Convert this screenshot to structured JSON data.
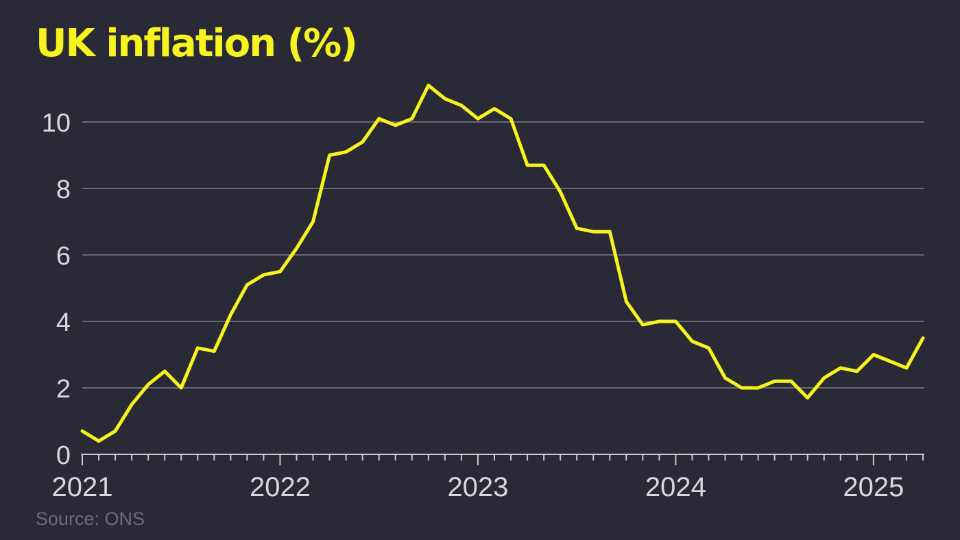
{
  "header": {
    "title": "UK inflation (%)"
  },
  "footer": {
    "source": "Source: ONS"
  },
  "colors": {
    "background": "#292a35",
    "line": "#f7f31f",
    "text": "#d8d9de",
    "grid": "#8a8b94",
    "source": "#6c6d78"
  },
  "chart_data": {
    "type": "line",
    "title": "UK inflation (%)",
    "xlabel": "",
    "ylabel": "",
    "ylim": [
      0,
      11
    ],
    "yticks": [
      0,
      2,
      4,
      6,
      8,
      10
    ],
    "xlim": [
      "2021-01",
      "2025-03"
    ],
    "xticks": [
      "2021",
      "2022",
      "2023",
      "2024",
      "2025"
    ],
    "grid": true,
    "series": [
      {
        "name": "",
        "points": [
          [
            "2021-01",
            0.7
          ],
          [
            "2021-02",
            0.4
          ],
          [
            "2021-03",
            0.7
          ],
          [
            "2021-04",
            1.5
          ],
          [
            "2021-05",
            2.1
          ],
          [
            "2021-06",
            2.5
          ],
          [
            "2021-07",
            2.0
          ],
          [
            "2021-08",
            3.2
          ],
          [
            "2021-09",
            3.1
          ],
          [
            "2021-10",
            4.2
          ],
          [
            "2021-11",
            5.1
          ],
          [
            "2021-12",
            5.4
          ],
          [
            "2022-01",
            5.5
          ],
          [
            "2022-02",
            6.2
          ],
          [
            "2022-03",
            7.0
          ],
          [
            "2022-04",
            9.0
          ],
          [
            "2022-05",
            9.1
          ],
          [
            "2022-06",
            9.4
          ],
          [
            "2022-07",
            10.1
          ],
          [
            "2022-08",
            9.9
          ],
          [
            "2022-09",
            10.1
          ],
          [
            "2022-10",
            11.1
          ],
          [
            "2022-11",
            10.7
          ],
          [
            "2022-12",
            10.5
          ],
          [
            "2023-01",
            10.1
          ],
          [
            "2023-02",
            10.4
          ],
          [
            "2023-03",
            10.1
          ],
          [
            "2023-04",
            8.7
          ],
          [
            "2023-05",
            8.7
          ],
          [
            "2023-06",
            7.9
          ],
          [
            "2023-07",
            6.8
          ],
          [
            "2023-08",
            6.7
          ],
          [
            "2023-09",
            6.7
          ],
          [
            "2023-10",
            4.6
          ],
          [
            "2023-11",
            3.9
          ],
          [
            "2023-12",
            4.0
          ],
          [
            "2024-01",
            4.0
          ],
          [
            "2024-02",
            3.4
          ],
          [
            "2024-03",
            3.2
          ],
          [
            "2024-04",
            2.3
          ],
          [
            "2024-05",
            2.0
          ],
          [
            "2024-06",
            2.0
          ],
          [
            "2024-07",
            2.2
          ],
          [
            "2024-08",
            2.2
          ],
          [
            "2024-09",
            1.7
          ],
          [
            "2024-10",
            2.3
          ],
          [
            "2024-11",
            2.6
          ],
          [
            "2024-12",
            2.5
          ],
          [
            "2025-01",
            3.0
          ],
          [
            "2025-02",
            2.8
          ],
          [
            "2025-03",
            2.6
          ],
          [
            "2025-04",
            3.5
          ]
        ]
      }
    ]
  }
}
